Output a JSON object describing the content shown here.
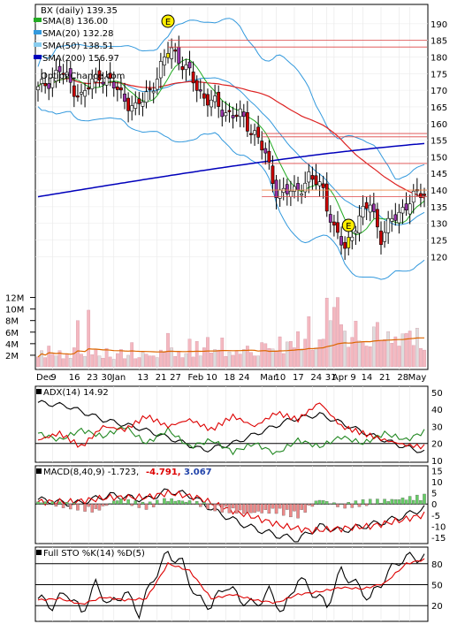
{
  "header": {
    "ticker_line": "BX (daily) 139.35",
    "watermark": "OptionChance.com",
    "earnings_marker": "E"
  },
  "legend": [
    {
      "label": "SMA(8) 136.00",
      "color": "#22aa22"
    },
    {
      "label": "SMA(20) 132.28",
      "color": "#3399dd"
    },
    {
      "label": "SMA(50) 138.51",
      "color": "#88ccee"
    },
    {
      "label": "SMA(200) 156.97",
      "color": "#0000bb"
    }
  ],
  "colors": {
    "up_candle": "#ffffff",
    "down_candle": "#cc0000",
    "earnings": "#ffee00",
    "volume_bar": "#f4b8c0",
    "volume_sma": "#dd6600",
    "adx": "#000000",
    "plus_di": "#228822",
    "minus_di": "#dd0000",
    "macd": "#000000",
    "signal": "#dd0000",
    "hist_pos": "#66cc66",
    "hist_neg": "#ee8888"
  },
  "xaxis": {
    "labels": [
      {
        "text": "Dec",
        "i": 0
      },
      {
        "text": "9",
        "i": 4
      },
      {
        "text": "16",
        "i": 9
      },
      {
        "text": "23",
        "i": 14
      },
      {
        "text": "30",
        "i": 18
      },
      {
        "text": "Jan",
        "i": 21
      },
      {
        "text": "13",
        "i": 28
      },
      {
        "text": "21",
        "i": 33
      },
      {
        "text": "27",
        "i": 37
      },
      {
        "text": "Feb",
        "i": 42
      },
      {
        "text": "10",
        "i": 47
      },
      {
        "text": "18",
        "i": 52
      },
      {
        "text": "24",
        "i": 56
      },
      {
        "text": "Mar",
        "i": 62
      },
      {
        "text": "10",
        "i": 66
      },
      {
        "text": "17",
        "i": 71
      },
      {
        "text": "24",
        "i": 76
      },
      {
        "text": "31",
        "i": 80
      },
      {
        "text": "Apr",
        "i": 82
      },
      {
        "text": "9",
        "i": 87
      },
      {
        "text": "14",
        "i": 90
      },
      {
        "text": "21",
        "i": 95
      },
      {
        "text": "28",
        "i": 100
      },
      {
        "text": "May",
        "i": 103
      }
    ]
  },
  "chart_data": [
    {
      "type": "candlestick",
      "panel": "price",
      "ylim": [
        110,
        195
      ],
      "yticks": [
        120,
        125,
        130,
        135,
        140,
        145,
        150,
        155,
        160,
        165,
        170,
        175,
        180,
        185,
        190
      ],
      "horizontal_levels": [
        185,
        183,
        157,
        156,
        148,
        140,
        138
      ],
      "earnings_index": [
        36,
        86
      ],
      "close_keys": [
        [
          0,
          170
        ],
        [
          6,
          176
        ],
        [
          12,
          168
        ],
        [
          17,
          175
        ],
        [
          22,
          170
        ],
        [
          27,
          164
        ],
        [
          32,
          172
        ],
        [
          37,
          183
        ],
        [
          41,
          176
        ],
        [
          46,
          168
        ],
        [
          51,
          164
        ],
        [
          56,
          162
        ],
        [
          61,
          156
        ],
        [
          66,
          140
        ],
        [
          71,
          139
        ],
        [
          75,
          144
        ],
        [
          79,
          140
        ],
        [
          82,
          128
        ],
        [
          85,
          122
        ],
        [
          88,
          130
        ],
        [
          92,
          136
        ],
        [
          95,
          126
        ],
        [
          99,
          132
        ],
        [
          103,
          137
        ],
        [
          107,
          139.35
        ]
      ]
    },
    {
      "type": "bar",
      "panel": "volume",
      "ylim": [
        0,
        13
      ],
      "yticks": [
        2,
        4,
        6,
        8,
        10,
        12
      ],
      "ytick_labels": [
        "2M",
        "4M",
        "6M",
        "8M",
        "10M",
        "12M"
      ],
      "values_m": [
        1.7,
        2.8,
        1.6,
        3.6,
        2.2,
        1.9,
        2.8,
        1.4,
        2.2,
        1.5,
        3.3,
        8.0,
        2.2,
        1.8,
        9.8,
        2.1,
        3.1,
        1.9,
        1.5,
        3.2,
        1.7,
        1.3,
        2.3,
        3.0,
        1.4,
        2.0,
        4.2,
        1.4,
        1.6,
        2.5,
        2.2,
        1.9,
        1.9,
        1.6,
        2.9,
        2.5,
        5.8,
        3.3,
        1.8,
        2.6,
        1.6,
        2.3,
        4.8,
        1.7,
        4.4,
        1.9,
        3.3,
        5.1,
        2.4,
        3.0,
        2.9,
        5.0,
        1.8,
        2.6,
        2.0,
        2.7,
        2.2,
        3.0,
        3.6,
        2.5,
        1.9,
        1.9,
        4.2,
        4.0,
        3.2,
        3.1,
        2.8,
        5.2,
        2.3,
        4.3,
        4.4,
        3.3,
        6.1,
        3.1,
        4.8,
        8.7,
        2.9,
        3.3,
        4.7,
        4.8,
        11.9,
        8.0,
        10.3,
        12.0,
        7.3,
        6.2,
        3.4,
        5.1,
        7.9,
        4.5,
        4.2,
        3.6,
        3.5,
        6.9,
        7.7,
        4.6,
        4.7,
        6.1,
        4.1,
        5.2,
        3.6,
        5.7,
        5.8,
        6.2,
        3.7,
        6.7,
        3.2,
        2.9
      ]
    },
    {
      "type": "line",
      "panel": "adx",
      "title": "ADX(14) 14.92",
      "ylim": [
        10,
        52
      ],
      "yticks": [
        10,
        20,
        30,
        40,
        50
      ],
      "ref_lines": [
        20
      ],
      "series": [
        {
          "name": "ADX",
          "keys": [
            [
              0,
              44
            ],
            [
              8,
              42
            ],
            [
              18,
              34
            ],
            [
              28,
              29
            ],
            [
              38,
              22
            ],
            [
              46,
              16
            ],
            [
              54,
              20
            ],
            [
              62,
              27
            ],
            [
              70,
              34
            ],
            [
              78,
              37
            ],
            [
              84,
              32
            ],
            [
              92,
              25
            ],
            [
              100,
              19
            ],
            [
              107,
              14.92
            ]
          ]
        },
        {
          "name": "+DI",
          "keys": [
            [
              0,
              26
            ],
            [
              6,
              22
            ],
            [
              12,
              28
            ],
            [
              18,
              24
            ],
            [
              24,
              30
            ],
            [
              30,
              20
            ],
            [
              36,
              28
            ],
            [
              42,
              18
            ],
            [
              48,
              22
            ],
            [
              54,
              15
            ],
            [
              60,
              20
            ],
            [
              66,
              14
            ],
            [
              72,
              22
            ],
            [
              78,
              18
            ],
            [
              84,
              24
            ],
            [
              90,
              20
            ],
            [
              96,
              26
            ],
            [
              102,
              22
            ],
            [
              107,
              27
            ]
          ]
        },
        {
          "name": "-DI",
          "keys": [
            [
              0,
              22
            ],
            [
              6,
              26
            ],
            [
              12,
              18
            ],
            [
              18,
              30
            ],
            [
              24,
              28
            ],
            [
              30,
              36
            ],
            [
              36,
              30
            ],
            [
              42,
              34
            ],
            [
              48,
              28
            ],
            [
              54,
              36
            ],
            [
              60,
              30
            ],
            [
              66,
              38
            ],
            [
              72,
              34
            ],
            [
              78,
              44
            ],
            [
              84,
              30
            ],
            [
              90,
              26
            ],
            [
              96,
              22
            ],
            [
              102,
              19
            ],
            [
              107,
              18
            ]
          ]
        }
      ]
    },
    {
      "type": "line",
      "panel": "macd",
      "title": "MACD(8,40,9) -1.723,",
      "signal_label": "-4.791,",
      "hist_label": "3.067",
      "ylim": [
        -17,
        16
      ],
      "yticks": [
        -15,
        -10,
        -5,
        0,
        5,
        10,
        15
      ],
      "ref_lines": [
        0
      ],
      "series": [
        {
          "name": "MACD",
          "keys": [
            [
              0,
              2
            ],
            [
              10,
              0
            ],
            [
              20,
              4
            ],
            [
              30,
              2
            ],
            [
              36,
              6
            ],
            [
              42,
              4
            ],
            [
              50,
              -4
            ],
            [
              58,
              -10
            ],
            [
              66,
              -14
            ],
            [
              72,
              -16
            ],
            [
              78,
              -10
            ],
            [
              84,
              -12
            ],
            [
              90,
              -10
            ],
            [
              96,
              -8
            ],
            [
              102,
              -5
            ],
            [
              107,
              -1.723
            ]
          ]
        },
        {
          "name": "Signal",
          "keys": [
            [
              0,
              1
            ],
            [
              10,
              1
            ],
            [
              20,
              3
            ],
            [
              30,
              3
            ],
            [
              36,
              5
            ],
            [
              44,
              3
            ],
            [
              52,
              -2
            ],
            [
              60,
              -6
            ],
            [
              68,
              -10
            ],
            [
              76,
              -12
            ],
            [
              84,
              -11
            ],
            [
              92,
              -10
            ],
            [
              100,
              -7.5
            ],
            [
              107,
              -4.791
            ]
          ]
        },
        {
          "name": "Histogram",
          "keys": [
            [
              0,
              1
            ],
            [
              10,
              -1
            ],
            [
              16,
              -3
            ],
            [
              22,
              2
            ],
            [
              30,
              -1
            ],
            [
              36,
              2
            ],
            [
              42,
              1
            ],
            [
              50,
              -2
            ],
            [
              58,
              -4
            ],
            [
              66,
              -3
            ],
            [
              72,
              -5
            ],
            [
              78,
              2
            ],
            [
              84,
              -1
            ],
            [
              90,
              0.5
            ],
            [
              96,
              1.5
            ],
            [
              102,
              2.5
            ],
            [
              107,
              3.067
            ]
          ]
        }
      ]
    },
    {
      "type": "line",
      "panel": "stochastic",
      "title": "Full STO %K(14) %D(5)",
      "ylim": [
        0,
        100
      ],
      "yticks": [
        20,
        50,
        80
      ],
      "ref_lines": [
        20,
        50,
        80
      ],
      "series": [
        {
          "name": "%K",
          "keys": [
            [
              0,
              30
            ],
            [
              4,
              20
            ],
            [
              8,
              40
            ],
            [
              12,
              10
            ],
            [
              16,
              50
            ],
            [
              20,
              20
            ],
            [
              24,
              40
            ],
            [
              28,
              10
            ],
            [
              32,
              60
            ],
            [
              36,
              95
            ],
            [
              40,
              80
            ],
            [
              44,
              30
            ],
            [
              48,
              20
            ],
            [
              52,
              50
            ],
            [
              56,
              30
            ],
            [
              60,
              20
            ],
            [
              64,
              40
            ],
            [
              68,
              10
            ],
            [
              72,
              60
            ],
            [
              76,
              40
            ],
            [
              80,
              20
            ],
            [
              84,
              70
            ],
            [
              88,
              50
            ],
            [
              92,
              30
            ],
            [
              96,
              60
            ],
            [
              100,
              85
            ],
            [
              104,
              90
            ],
            [
              107,
              88
            ]
          ]
        },
        {
          "name": "%D",
          "keys": [
            [
              0,
              28
            ],
            [
              6,
              30
            ],
            [
              12,
              22
            ],
            [
              18,
              32
            ],
            [
              24,
              28
            ],
            [
              30,
              30
            ],
            [
              36,
              80
            ],
            [
              42,
              70
            ],
            [
              48,
              30
            ],
            [
              54,
              36
            ],
            [
              60,
              28
            ],
            [
              66,
              24
            ],
            [
              72,
              36
            ],
            [
              78,
              40
            ],
            [
              84,
              46
            ],
            [
              90,
              44
            ],
            [
              96,
              52
            ],
            [
              102,
              80
            ],
            [
              107,
              86
            ]
          ]
        }
      ]
    }
  ]
}
